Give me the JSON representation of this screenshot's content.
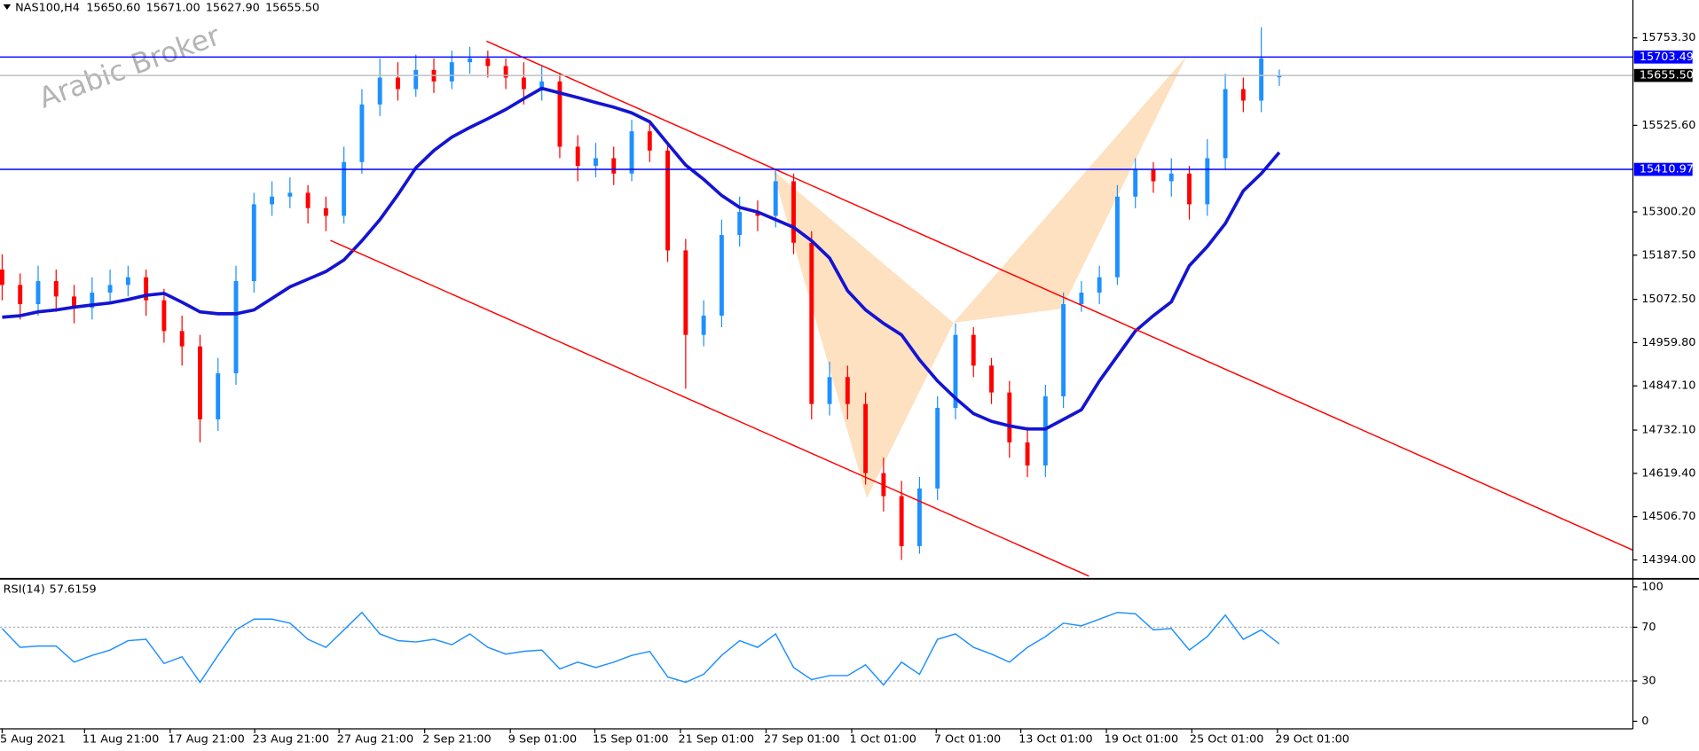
{
  "header": {
    "symbol": "NAS100,H4",
    "ohlc": [
      "15650.60",
      "15671.00",
      "15627.90",
      "15655.50"
    ]
  },
  "chart_data": [
    {
      "type": "candlestick",
      "watermark": "Arabic Broker",
      "color_up": "#1e90ff",
      "color_down": "#ff0000",
      "open": [
        15150,
        15110,
        15060,
        15120,
        15080,
        15050,
        15090,
        15110,
        15130,
        15070,
        14990,
        14950,
        14760,
        14880,
        15120,
        15320,
        15340,
        15350,
        15310,
        15290,
        15430,
        15580,
        15650,
        15620,
        15670,
        15640,
        15690,
        15700,
        15680,
        15650,
        15620,
        15640,
        15470,
        15420,
        15440,
        15400,
        15510,
        15460,
        15200,
        14980,
        15030,
        15240,
        15300,
        15290,
        15380,
        15220,
        14800,
        14870,
        14800,
        14620,
        14560,
        14430,
        14580,
        14790,
        14980,
        14900,
        14830,
        14700,
        14640,
        14820,
        15060,
        15090,
        15130,
        15340,
        15410,
        15380,
        15400,
        15320,
        15440,
        15620,
        15590,
        15650.6
      ],
      "high": [
        15190,
        15140,
        15160,
        15150,
        15110,
        15130,
        15150,
        15160,
        15150,
        15100,
        15030,
        14980,
        14920,
        15160,
        15350,
        15380,
        15390,
        15370,
        15340,
        15470,
        15620,
        15700,
        15690,
        15710,
        15700,
        15720,
        15730,
        15720,
        15700,
        15690,
        15680,
        15660,
        15500,
        15480,
        15470,
        15540,
        15530,
        15480,
        15230,
        15070,
        15280,
        15340,
        15330,
        15410,
        15400,
        15250,
        14910,
        14900,
        14830,
        14660,
        14600,
        14610,
        14820,
        15010,
        15000,
        14920,
        14860,
        14740,
        14850,
        15090,
        15120,
        15160,
        15370,
        15440,
        15430,
        15440,
        15420,
        15490,
        15660,
        15650,
        15781,
        15671
      ],
      "low": [
        15070,
        15020,
        15030,
        15040,
        15010,
        15020,
        15060,
        15080,
        15030,
        14960,
        14900,
        14700,
        14730,
        14850,
        15090,
        15290,
        15310,
        15270,
        15250,
        15270,
        15400,
        15550,
        15590,
        15600,
        15610,
        15620,
        15660,
        15650,
        15620,
        15580,
        15590,
        15440,
        15380,
        15390,
        15370,
        15380,
        15430,
        15170,
        14840,
        14950,
        15000,
        15210,
        15250,
        15260,
        15190,
        14760,
        14770,
        14760,
        14590,
        14520,
        14394,
        14410,
        14550,
        14760,
        14870,
        14800,
        14660,
        14610,
        14610,
        14790,
        15040,
        15060,
        15110,
        15310,
        15350,
        15340,
        15280,
        15290,
        15410,
        15560,
        15560,
        15627.9
      ],
      "close": [
        15110,
        15060,
        15120,
        15080,
        15050,
        15090,
        15110,
        15130,
        15070,
        14990,
        14950,
        14760,
        14880,
        15120,
        15320,
        15340,
        15350,
        15310,
        15290,
        15430,
        15580,
        15650,
        15620,
        15670,
        15640,
        15690,
        15700,
        15680,
        15650,
        15620,
        15640,
        15470,
        15420,
        15440,
        15400,
        15510,
        15460,
        15200,
        14980,
        15030,
        15240,
        15300,
        15290,
        15380,
        15220,
        14800,
        14870,
        14800,
        14620,
        14560,
        14430,
        14580,
        14790,
        14980,
        14900,
        14830,
        14700,
        14640,
        14820,
        15060,
        15090,
        15130,
        15340,
        15410,
        15380,
        15400,
        15320,
        15440,
        15620,
        15590,
        15700,
        15655.5
      ],
      "ma": {
        "color": "#1414d2",
        "values": [
          15026,
          15030,
          15040,
          15045,
          15052,
          15058,
          15063,
          15072,
          15083,
          15088,
          15065,
          15040,
          15035,
          15035,
          15045,
          15075,
          15105,
          15125,
          15145,
          15175,
          15225,
          15280,
          15345,
          15415,
          15460,
          15495,
          15520,
          15543,
          15567,
          15595,
          15622,
          15610,
          15598,
          15585,
          15573,
          15558,
          15535,
          15478,
          15422,
          15385,
          15343,
          15312,
          15300,
          15280,
          15260,
          15225,
          15180,
          15095,
          15045,
          15010,
          14980,
          14915,
          14860,
          14815,
          14775,
          14755,
          14743,
          14735,
          14735,
          14760,
          14785,
          14860,
          14925,
          14990,
          15030,
          15066,
          15160,
          15210,
          15270,
          15355,
          15400,
          15455
        ]
      },
      "hlines": [
        {
          "value": 15703.49,
          "color": "#0000ff",
          "label_bg": "#0000ff"
        },
        {
          "value": 15410.97,
          "color": "#0000ff",
          "label_bg": "#0000ff"
        },
        {
          "value": 15655.5,
          "label": "15655.50",
          "color": "#c0c0c0",
          "label_bg": "#000000"
        }
      ],
      "trendlines": {
        "color": "#ff0000",
        "lines": [
          {
            "x": [
              26.93,
              90.66
            ],
            "y": [
              15744.8,
              14419.4
            ]
          },
          {
            "x": [
              18.25,
              60.42
            ],
            "y": [
              15226,
              14351.7
            ]
          }
        ]
      },
      "pattern": {
        "color": "#fddcb5",
        "triangles": [
          {
            "x": [
              42.83,
              48.07,
              52.89
            ],
            "y": [
              15409.2,
              14554.8,
              15011.6
            ]
          },
          {
            "x": [
              52.89,
              65.84,
              58.92
            ],
            "y": [
              15011.6,
              15705.4,
              15048.3
            ]
          }
        ]
      },
      "xlim": [
        -0.12,
        90.66
      ],
      "ylim": [
        14349,
        15852
      ],
      "yticks": [
        {
          "value": 15753.3,
          "label": "15753.30"
        },
        {
          "value": 15525.6,
          "label": "15525.60"
        },
        {
          "value": 15300.2,
          "label": "15300.20"
        },
        {
          "value": 15187.5,
          "label": "15187.50"
        },
        {
          "value": 15072.5,
          "label": "15072.50"
        },
        {
          "value": 14959.8,
          "label": "14959.80"
        },
        {
          "value": 14847.1,
          "label": "14847.10"
        },
        {
          "value": 14732.1,
          "label": "14732.10"
        },
        {
          "value": 14619.4,
          "label": "14619.40"
        },
        {
          "value": 14506.7,
          "label": "14506.70"
        },
        {
          "value": 14394,
          "label": "14394.00"
        }
      ],
      "xticks": [
        {
          "value": 0,
          "label": "5 Aug 2021"
        },
        {
          "value": 4.58,
          "label": "11 Aug 21:00"
        },
        {
          "value": 9.34,
          "label": "17 Aug 21:00"
        },
        {
          "value": 14.04,
          "label": "23 Aug 21:00"
        },
        {
          "value": 18.73,
          "label": "27 Aug 21:00"
        },
        {
          "value": 23.49,
          "label": "2 Sep 21:00"
        },
        {
          "value": 28.25,
          "label": "9 Sep 01:00"
        },
        {
          "value": 32.95,
          "label": "15 Sep 01:00"
        },
        {
          "value": 37.71,
          "label": "21 Sep 01:00"
        },
        {
          "value": 42.47,
          "label": "27 Sep 01:00"
        },
        {
          "value": 47.23,
          "label": "1 Oct 01:00"
        },
        {
          "value": 51.93,
          "label": "7 Oct 01:00"
        },
        {
          "value": 56.63,
          "label": "13 Oct 01:00"
        },
        {
          "value": 61.39,
          "label": "19 Oct 01:00"
        },
        {
          "value": 66.14,
          "label": "25 Oct 01:00"
        },
        {
          "value": 70.9,
          "label": "29 Oct 01:00"
        }
      ]
    },
    {
      "type": "line",
      "title": "RSI(14)",
      "color": "#1e90ff",
      "values": [
        69,
        55,
        56,
        56,
        44,
        49,
        53,
        60,
        61,
        43,
        48,
        29,
        49,
        68,
        76,
        76,
        73,
        61,
        55,
        68,
        81,
        65,
        60,
        59,
        61,
        57,
        65,
        55,
        50,
        52,
        53,
        39,
        44,
        40,
        44,
        49,
        52,
        33,
        29,
        35,
        49,
        60,
        55,
        65,
        40,
        31,
        34,
        34,
        42,
        27,
        44,
        35,
        61,
        65,
        55,
        50,
        44,
        55,
        63,
        73,
        71,
        76,
        81,
        80,
        68,
        69,
        53,
        63,
        79,
        61,
        68,
        57.6159
      ],
      "ylim": [
        -5.6,
        104.8
      ],
      "yticks": [
        0,
        30,
        70,
        100
      ],
      "levels": [
        30,
        70
      ]
    }
  ]
}
